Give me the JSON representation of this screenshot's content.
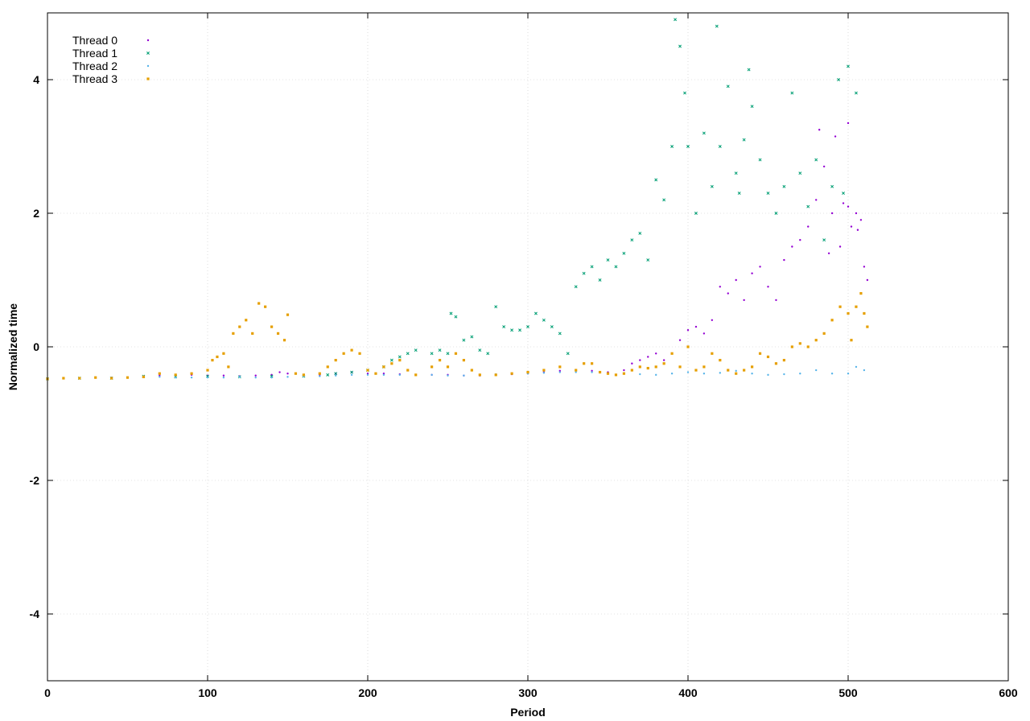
{
  "chart_data": {
    "type": "scatter",
    "title": "",
    "xlabel": "Period",
    "ylabel": "Normalized time",
    "xlim": [
      0,
      600
    ],
    "ylim": [
      -5,
      5
    ],
    "xticks": [
      0,
      100,
      200,
      300,
      400,
      500,
      600
    ],
    "yticks": [
      -4,
      -2,
      0,
      2,
      4
    ],
    "grid": true,
    "legend_position": "top-left",
    "series": [
      {
        "name": "Thread 0",
        "color": "#9400d3",
        "marker": "dot",
        "points": [
          [
            0,
            -0.48
          ],
          [
            10,
            -0.47
          ],
          [
            20,
            -0.47
          ],
          [
            30,
            -0.46
          ],
          [
            40,
            -0.46
          ],
          [
            50,
            -0.46
          ],
          [
            60,
            -0.44
          ],
          [
            70,
            -0.43
          ],
          [
            80,
            -0.43
          ],
          [
            90,
            -0.42
          ],
          [
            100,
            -0.43
          ],
          [
            110,
            -0.43
          ],
          [
            120,
            -0.44
          ],
          [
            130,
            -0.43
          ],
          [
            140,
            -0.42
          ],
          [
            145,
            -0.38
          ],
          [
            150,
            -0.4
          ],
          [
            160,
            -0.42
          ],
          [
            170,
            -0.42
          ],
          [
            180,
            -0.4
          ],
          [
            190,
            -0.38
          ],
          [
            200,
            -0.4
          ],
          [
            210,
            -0.4
          ],
          [
            220,
            -0.41
          ],
          [
            230,
            -0.42
          ],
          [
            240,
            -0.42
          ],
          [
            250,
            -0.42
          ],
          [
            260,
            -0.43
          ],
          [
            270,
            -0.43
          ],
          [
            280,
            -0.42
          ],
          [
            290,
            -0.41
          ],
          [
            300,
            -0.4
          ],
          [
            310,
            -0.38
          ],
          [
            320,
            -0.36
          ],
          [
            330,
            -0.35
          ],
          [
            340,
            -0.36
          ],
          [
            350,
            -0.38
          ],
          [
            360,
            -0.35
          ],
          [
            365,
            -0.25
          ],
          [
            370,
            -0.2
          ],
          [
            375,
            -0.15
          ],
          [
            380,
            -0.1
          ],
          [
            385,
            -0.2
          ],
          [
            390,
            -0.1
          ],
          [
            395,
            0.1
          ],
          [
            400,
            0.25
          ],
          [
            405,
            0.3
          ],
          [
            410,
            0.2
          ],
          [
            415,
            0.4
          ],
          [
            420,
            0.9
          ],
          [
            425,
            0.8
          ],
          [
            430,
            1.0
          ],
          [
            435,
            0.7
          ],
          [
            440,
            1.1
          ],
          [
            445,
            1.2
          ],
          [
            450,
            0.9
          ],
          [
            455,
            0.7
          ],
          [
            460,
            1.3
          ],
          [
            465,
            1.5
          ],
          [
            470,
            1.6
          ],
          [
            475,
            1.8
          ],
          [
            480,
            2.2
          ],
          [
            482,
            3.25
          ],
          [
            485,
            2.7
          ],
          [
            488,
            1.4
          ],
          [
            490,
            2.0
          ],
          [
            492,
            3.15
          ],
          [
            495,
            1.5
          ],
          [
            497,
            2.15
          ],
          [
            500,
            3.35
          ],
          [
            500,
            2.1
          ],
          [
            502,
            1.8
          ],
          [
            505,
            2.0
          ],
          [
            506,
            1.75
          ],
          [
            508,
            1.9
          ],
          [
            510,
            1.2
          ],
          [
            512,
            1.0
          ]
        ]
      },
      {
        "name": "Thread 1",
        "color": "#009e73",
        "marker": "x",
        "points": [
          [
            0,
            -0.48
          ],
          [
            20,
            -0.47
          ],
          [
            40,
            -0.47
          ],
          [
            60,
            -0.44
          ],
          [
            80,
            -0.45
          ],
          [
            100,
            -0.44
          ],
          [
            120,
            -0.45
          ],
          [
            140,
            -0.44
          ],
          [
            160,
            -0.44
          ],
          [
            175,
            -0.42
          ],
          [
            180,
            -0.4
          ],
          [
            190,
            -0.38
          ],
          [
            200,
            -0.35
          ],
          [
            210,
            -0.3
          ],
          [
            215,
            -0.2
          ],
          [
            220,
            -0.15
          ],
          [
            225,
            -0.1
          ],
          [
            230,
            -0.05
          ],
          [
            240,
            -0.1
          ],
          [
            245,
            -0.05
          ],
          [
            250,
            -0.1
          ],
          [
            252,
            0.5
          ],
          [
            255,
            0.45
          ],
          [
            260,
            0.1
          ],
          [
            265,
            0.15
          ],
          [
            270,
            -0.05
          ],
          [
            275,
            -0.1
          ],
          [
            280,
            0.6
          ],
          [
            285,
            0.3
          ],
          [
            290,
            0.25
          ],
          [
            295,
            0.25
          ],
          [
            300,
            0.3
          ],
          [
            305,
            0.5
          ],
          [
            310,
            0.4
          ],
          [
            315,
            0.3
          ],
          [
            320,
            0.2
          ],
          [
            325,
            -0.1
          ],
          [
            330,
            0.9
          ],
          [
            335,
            1.1
          ],
          [
            340,
            1.2
          ],
          [
            345,
            1.0
          ],
          [
            350,
            1.3
          ],
          [
            355,
            1.2
          ],
          [
            360,
            1.4
          ],
          [
            365,
            1.6
          ],
          [
            370,
            1.7
          ],
          [
            375,
            1.3
          ],
          [
            380,
            2.5
          ],
          [
            385,
            2.2
          ],
          [
            390,
            3.0
          ],
          [
            392,
            4.9
          ],
          [
            395,
            4.5
          ],
          [
            398,
            3.8
          ],
          [
            400,
            3.0
          ],
          [
            405,
            2.0
          ],
          [
            410,
            3.2
          ],
          [
            415,
            2.4
          ],
          [
            418,
            4.8
          ],
          [
            420,
            3.0
          ],
          [
            425,
            3.9
          ],
          [
            430,
            2.6
          ],
          [
            432,
            2.3
          ],
          [
            435,
            3.1
          ],
          [
            438,
            4.15
          ],
          [
            440,
            3.6
          ],
          [
            445,
            2.8
          ],
          [
            450,
            2.3
          ],
          [
            455,
            2.0
          ],
          [
            460,
            2.4
          ],
          [
            465,
            3.8
          ],
          [
            470,
            2.6
          ],
          [
            475,
            2.1
          ],
          [
            480,
            2.8
          ],
          [
            485,
            1.6
          ],
          [
            490,
            2.4
          ],
          [
            494,
            4.0
          ],
          [
            497,
            2.3
          ],
          [
            500,
            4.2
          ],
          [
            505,
            3.8
          ]
        ]
      },
      {
        "name": "Thread 2",
        "color": "#56b4e9",
        "marker": "dot",
        "points": [
          [
            0,
            -0.48
          ],
          [
            10,
            -0.47
          ],
          [
            20,
            -0.47
          ],
          [
            30,
            -0.46
          ],
          [
            40,
            -0.46
          ],
          [
            50,
            -0.46
          ],
          [
            60,
            -0.45
          ],
          [
            70,
            -0.45
          ],
          [
            80,
            -0.46
          ],
          [
            90,
            -0.46
          ],
          [
            100,
            -0.46
          ],
          [
            110,
            -0.46
          ],
          [
            120,
            -0.45
          ],
          [
            130,
            -0.46
          ],
          [
            140,
            -0.46
          ],
          [
            150,
            -0.45
          ],
          [
            160,
            -0.44
          ],
          [
            170,
            -0.44
          ],
          [
            180,
            -0.43
          ],
          [
            190,
            -0.42
          ],
          [
            200,
            -0.42
          ],
          [
            210,
            -0.42
          ],
          [
            220,
            -0.42
          ],
          [
            230,
            -0.42
          ],
          [
            240,
            -0.42
          ],
          [
            250,
            -0.43
          ],
          [
            260,
            -0.43
          ],
          [
            270,
            -0.42
          ],
          [
            280,
            -0.41
          ],
          [
            290,
            -0.4
          ],
          [
            300,
            -0.4
          ],
          [
            310,
            -0.39
          ],
          [
            320,
            -0.38
          ],
          [
            330,
            -0.38
          ],
          [
            340,
            -0.38
          ],
          [
            350,
            -0.4
          ],
          [
            360,
            -0.4
          ],
          [
            370,
            -0.41
          ],
          [
            380,
            -0.42
          ],
          [
            390,
            -0.4
          ],
          [
            400,
            -0.38
          ],
          [
            410,
            -0.4
          ],
          [
            420,
            -0.39
          ],
          [
            430,
            -0.36
          ],
          [
            440,
            -0.4
          ],
          [
            450,
            -0.42
          ],
          [
            460,
            -0.41
          ],
          [
            470,
            -0.4
          ],
          [
            480,
            -0.35
          ],
          [
            490,
            -0.4
          ],
          [
            500,
            -0.4
          ],
          [
            505,
            -0.3
          ],
          [
            510,
            -0.35
          ]
        ]
      },
      {
        "name": "Thread 3",
        "color": "#e69f00",
        "marker": "square",
        "points": [
          [
            0,
            -0.48
          ],
          [
            10,
            -0.47
          ],
          [
            20,
            -0.47
          ],
          [
            30,
            -0.46
          ],
          [
            40,
            -0.47
          ],
          [
            50,
            -0.46
          ],
          [
            60,
            -0.45
          ],
          [
            70,
            -0.4
          ],
          [
            80,
            -0.42
          ],
          [
            90,
            -0.4
          ],
          [
            100,
            -0.35
          ],
          [
            103,
            -0.2
          ],
          [
            106,
            -0.15
          ],
          [
            110,
            -0.1
          ],
          [
            113,
            -0.3
          ],
          [
            116,
            0.2
          ],
          [
            120,
            0.3
          ],
          [
            124,
            0.4
          ],
          [
            128,
            0.2
          ],
          [
            132,
            0.65
          ],
          [
            136,
            0.6
          ],
          [
            140,
            0.3
          ],
          [
            144,
            0.2
          ],
          [
            148,
            0.1
          ],
          [
            150,
            0.48
          ],
          [
            155,
            -0.4
          ],
          [
            160,
            -0.42
          ],
          [
            170,
            -0.4
          ],
          [
            175,
            -0.3
          ],
          [
            180,
            -0.2
          ],
          [
            185,
            -0.1
          ],
          [
            190,
            -0.05
          ],
          [
            195,
            -0.1
          ],
          [
            200,
            -0.35
          ],
          [
            205,
            -0.4
          ],
          [
            210,
            -0.3
          ],
          [
            215,
            -0.25
          ],
          [
            220,
            -0.2
          ],
          [
            225,
            -0.35
          ],
          [
            230,
            -0.42
          ],
          [
            240,
            -0.3
          ],
          [
            245,
            -0.2
          ],
          [
            250,
            -0.3
          ],
          [
            255,
            -0.1
          ],
          [
            260,
            -0.2
          ],
          [
            265,
            -0.35
          ],
          [
            270,
            -0.42
          ],
          [
            280,
            -0.42
          ],
          [
            290,
            -0.4
          ],
          [
            300,
            -0.38
          ],
          [
            310,
            -0.35
          ],
          [
            320,
            -0.3
          ],
          [
            330,
            -0.35
          ],
          [
            335,
            -0.25
          ],
          [
            340,
            -0.25
          ],
          [
            345,
            -0.38
          ],
          [
            350,
            -0.4
          ],
          [
            355,
            -0.42
          ],
          [
            360,
            -0.4
          ],
          [
            365,
            -0.35
          ],
          [
            370,
            -0.3
          ],
          [
            375,
            -0.32
          ],
          [
            380,
            -0.3
          ],
          [
            385,
            -0.25
          ],
          [
            390,
            -0.1
          ],
          [
            395,
            -0.3
          ],
          [
            400,
            0.0
          ],
          [
            405,
            -0.35
          ],
          [
            410,
            -0.3
          ],
          [
            415,
            -0.1
          ],
          [
            420,
            -0.2
          ],
          [
            425,
            -0.35
          ],
          [
            430,
            -0.4
          ],
          [
            435,
            -0.35
          ],
          [
            440,
            -0.3
          ],
          [
            445,
            -0.1
          ],
          [
            450,
            -0.15
          ],
          [
            455,
            -0.25
          ],
          [
            460,
            -0.2
          ],
          [
            465,
            0.0
          ],
          [
            470,
            0.05
          ],
          [
            475,
            0.0
          ],
          [
            480,
            0.1
          ],
          [
            485,
            0.2
          ],
          [
            490,
            0.4
          ],
          [
            495,
            0.6
          ],
          [
            500,
            0.5
          ],
          [
            502,
            0.1
          ],
          [
            505,
            0.6
          ],
          [
            508,
            0.8
          ],
          [
            510,
            0.5
          ],
          [
            512,
            0.3
          ]
        ]
      }
    ]
  }
}
